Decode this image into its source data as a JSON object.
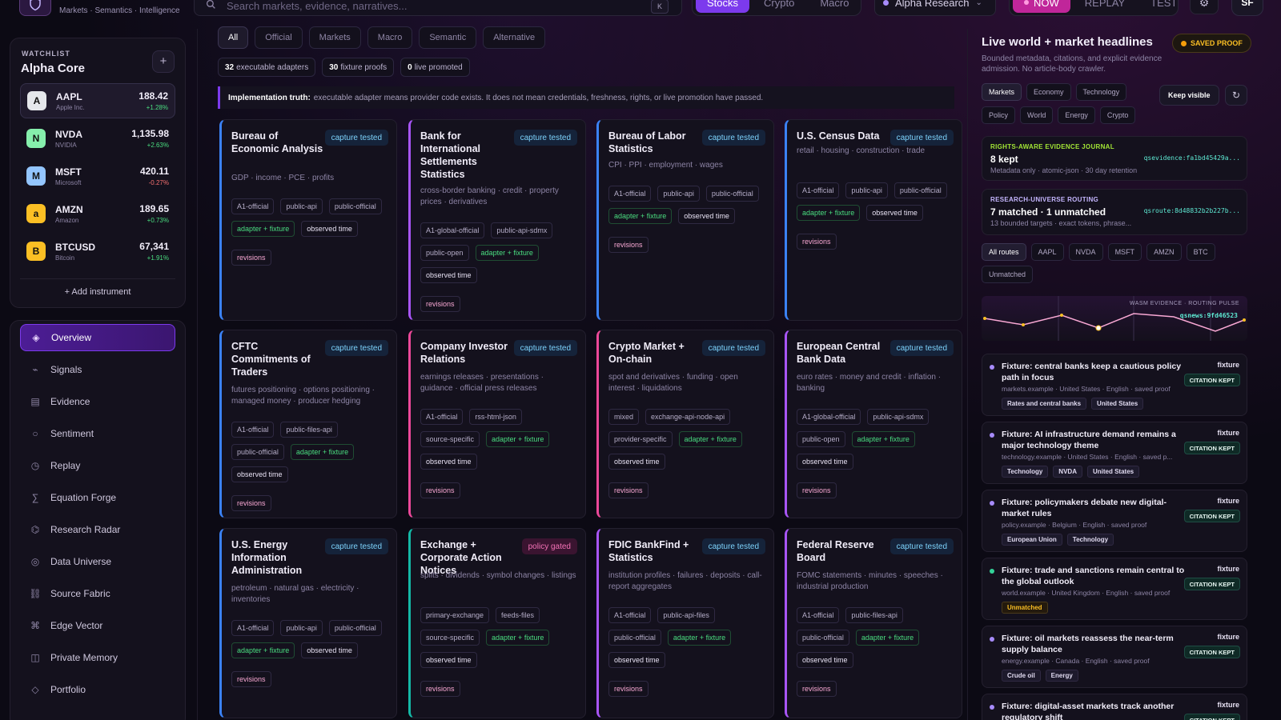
{
  "header": {
    "brand_tagline": "Markets · Semantics · Intelligence",
    "search_placeholder": "Search markets, evidence, narratives...",
    "search_shortcut": "K",
    "asset_tabs": [
      "Stocks",
      "Crypto",
      "Macro"
    ],
    "asset_active": "Stocks",
    "workspace": "Alpha Research",
    "mode_tabs": [
      "NOW",
      "REPLAY",
      "TEST"
    ],
    "mode_active": "NOW",
    "user_initials": "SF"
  },
  "watchlist": {
    "label": "WATCHLIST",
    "name": "Alpha Core",
    "add_label": "+ Add instrument",
    "items": [
      {
        "ticker": "AAPL",
        "name": "Apple Inc.",
        "price": "188.42",
        "change": "+1.28%",
        "letter": "A",
        "color": "#e5e7eb",
        "dir": "up"
      },
      {
        "ticker": "NVDA",
        "name": "NVIDIA",
        "price": "1,135.98",
        "change": "+2.63%",
        "letter": "N",
        "color": "#86efac",
        "dir": "up"
      },
      {
        "ticker": "MSFT",
        "name": "Microsoft",
        "price": "420.11",
        "change": "-0.27%",
        "letter": "M",
        "color": "#93c5fd",
        "dir": "down"
      },
      {
        "ticker": "AMZN",
        "name": "Amazon",
        "price": "189.65",
        "change": "+0.73%",
        "letter": "a",
        "color": "#fbbf24",
        "dir": "up"
      },
      {
        "ticker": "BTCUSD",
        "name": "Bitcoin",
        "price": "67,341",
        "change": "+1.91%",
        "letter": "B",
        "color": "#fbbf24",
        "dir": "up"
      }
    ]
  },
  "nav": [
    {
      "label": "Overview",
      "icon": "diamond-icon"
    },
    {
      "label": "Signals",
      "icon": "pulse-icon"
    },
    {
      "label": "Evidence",
      "icon": "document-icon"
    },
    {
      "label": "Sentiment",
      "icon": "circle-icon"
    },
    {
      "label": "Replay",
      "icon": "clock-icon"
    },
    {
      "label": "Equation Forge",
      "icon": "sigma-icon"
    },
    {
      "label": "Research Radar",
      "icon": "radar-icon"
    },
    {
      "label": "Data Universe",
      "icon": "target-icon"
    },
    {
      "label": "Source Fabric",
      "icon": "link-icon"
    },
    {
      "label": "Edge Vector",
      "icon": "command-icon"
    },
    {
      "label": "Private Memory",
      "icon": "book-icon"
    },
    {
      "label": "Portfolio",
      "icon": "diamond-outline-icon"
    }
  ],
  "main": {
    "filters": [
      "All",
      "Official",
      "Markets",
      "Macro",
      "Semantic",
      "Alternative"
    ],
    "stats": [
      {
        "value": "32",
        "label": "executable adapters"
      },
      {
        "value": "30",
        "label": "fixture proofs"
      },
      {
        "value": "0",
        "label": "live promoted"
      }
    ],
    "truth_label": "Implementation truth:",
    "truth_text": "executable adapter means provider code exists. It does not mean credentials, freshness, rights, or live promotion have passed."
  },
  "cards": [
    {
      "title": "Bureau of Economic Analysis",
      "badge": "capture tested",
      "desc": "GDP · income · PCE · profits",
      "tags": [
        "A1-official",
        "public-api",
        "public-official"
      ],
      "accent": "#3b82f6"
    },
    {
      "title": "Bank for International Settlements Statistics",
      "badge": "capture tested",
      "desc": "cross-border banking · credit · property prices · derivatives",
      "tags": [
        "A1-global-official",
        "public-api-sdmx",
        "public-open"
      ],
      "accent": "#a855f7"
    },
    {
      "title": "Bureau of Labor Statistics",
      "badge": "capture tested",
      "desc": "CPI · PPI · employment · wages",
      "tags": [
        "A1-official",
        "public-api",
        "public-official"
      ],
      "accent": "#3b82f6"
    },
    {
      "title": "U.S. Census Data",
      "badge": "capture tested",
      "desc": "retail · housing · construction · trade",
      "tags": [
        "A1-official",
        "public-api",
        "public-official"
      ],
      "accent": "#3b82f6"
    },
    {
      "title": "CFTC Commitments of Traders",
      "badge": "capture tested",
      "desc": "futures positioning · options positioning · managed money · producer hedging",
      "tags": [
        "A1-official",
        "public-files-api",
        "public-official"
      ],
      "accent": "#3b82f6"
    },
    {
      "title": "Company Investor Relations",
      "badge": "capture tested",
      "desc": "earnings releases · presentations · guidance · official press releases",
      "tags": [
        "A1-official",
        "rss-html-json",
        "source-specific"
      ],
      "accent": "#ec4899"
    },
    {
      "title": "Crypto Market + On-chain",
      "badge": "capture tested",
      "desc": "spot and derivatives · funding · open interest · liquidations",
      "tags": [
        "mixed",
        "exchange-api-node-api",
        "provider-specific"
      ],
      "accent": "#ec4899"
    },
    {
      "title": "European Central Bank Data",
      "badge": "capture tested",
      "desc": "euro rates · money and credit · inflation · banking",
      "tags": [
        "A1-global-official",
        "public-api-sdmx",
        "public-open"
      ],
      "accent": "#a855f7"
    },
    {
      "title": "U.S. Energy Information Administration",
      "badge": "capture tested",
      "desc": "petroleum · natural gas · electricity · inventories",
      "tags": [
        "A1-official",
        "public-api",
        "public-official"
      ],
      "accent": "#3b82f6"
    },
    {
      "title": "Exchange + Corporate Action Notices",
      "badge": "policy gated",
      "desc": "splits · dividends · symbol changes · listings",
      "tags": [
        "primary-exchange",
        "feeds-files",
        "source-specific"
      ],
      "accent": "#14b8a6"
    },
    {
      "title": "FDIC BankFind + Statistics",
      "badge": "capture tested",
      "desc": "institution profiles · failures · deposits · call-report aggregates",
      "tags": [
        "A1-official",
        "public-api-files",
        "public-official"
      ],
      "accent": "#a855f7"
    },
    {
      "title": "Federal Reserve Board",
      "badge": "capture tested",
      "desc": "FOMC statements · minutes · speeches · industrial production",
      "tags": [
        "A1-official",
        "public-files-api",
        "public-official"
      ],
      "accent": "#a855f7"
    }
  ],
  "card_common": {
    "status_a": "adapter + fixture",
    "status_b": "observed time",
    "revisions": "revisions"
  },
  "right": {
    "title": "Live world + market headlines",
    "saved_proof": "SAVED PROOF",
    "subtitle": "Bounded metadata, citations, and explicit evidence admission. No article-body crawler.",
    "topic_tabs_row1": [
      "Markets",
      "Economy",
      "Technology"
    ],
    "topic_tabs_row2": [
      "Policy",
      "World",
      "Energy",
      "Crypto"
    ],
    "topic_active": "Markets",
    "keep_visible": "Keep visible",
    "journal": {
      "key": "RIGHTS-AWARE EVIDENCE JOURNAL",
      "value": "8 kept",
      "meta": "Metadata only · atomic-json · 30 day retention",
      "hash": "qsevidence:fa1bd45429a..."
    },
    "routing": {
      "key": "RESEARCH-UNIVERSE ROUTING",
      "value": "7 matched · 1 unmatched",
      "meta": "13 bounded targets · exact tokens, phrase...",
      "hash": "qsroute:8d48832b2b227b..."
    },
    "routes": [
      "All routes",
      "AAPL",
      "NVDA",
      "MSFT",
      "AMZN",
      "BTC",
      "Unmatched"
    ],
    "route_active": "All routes",
    "pulse_label": "WASM EVIDENCE · ROUTING PULSE",
    "pulse_hash": "qsnews:9fd46523",
    "news": [
      {
        "headline": "Fixture: central banks keep a cautious policy path in focus",
        "meta": "markets.example · United States · English · saved proof",
        "fixture": "fixture",
        "citation": "CITATION KEPT",
        "tags": [
          "Rates and central banks",
          "United States"
        ],
        "dot": "#a78bfa"
      },
      {
        "headline": "Fixture: AI infrastructure demand remains a major technology theme",
        "meta": "technology.example · United States · English · saved p...",
        "fixture": "fixture",
        "citation": "CITATION KEPT",
        "tags": [
          "Technology",
          "NVDA",
          "United States"
        ],
        "dot": "#a78bfa"
      },
      {
        "headline": "Fixture: policymakers debate new digital-market rules",
        "meta": "policy.example · Belgium · English · saved proof",
        "fixture": "fixture",
        "citation": "CITATION KEPT",
        "tags": [
          "European Union",
          "Technology"
        ],
        "dot": "#a78bfa"
      },
      {
        "headline": "Fixture: trade and sanctions remain central to the global outlook",
        "meta": "world.example · United Kingdom · English · saved proof",
        "fixture": "fixture",
        "citation": "CITATION KEPT",
        "tags": [
          "Unmatched"
        ],
        "dot": "#34d399"
      },
      {
        "headline": "Fixture: oil markets reassess the near-term supply balance",
        "meta": "energy.example · Canada · English · saved proof",
        "fixture": "fixture",
        "citation": "CITATION KEPT",
        "tags": [
          "Crude oil",
          "Energy"
        ],
        "dot": "#a78bfa"
      },
      {
        "headline": "Fixture: digital-asset markets track another regulatory shift",
        "meta": "",
        "fixture": "fixture",
        "citation": "CITATION KEPT",
        "tags": [],
        "dot": "#a78bfa"
      }
    ]
  }
}
